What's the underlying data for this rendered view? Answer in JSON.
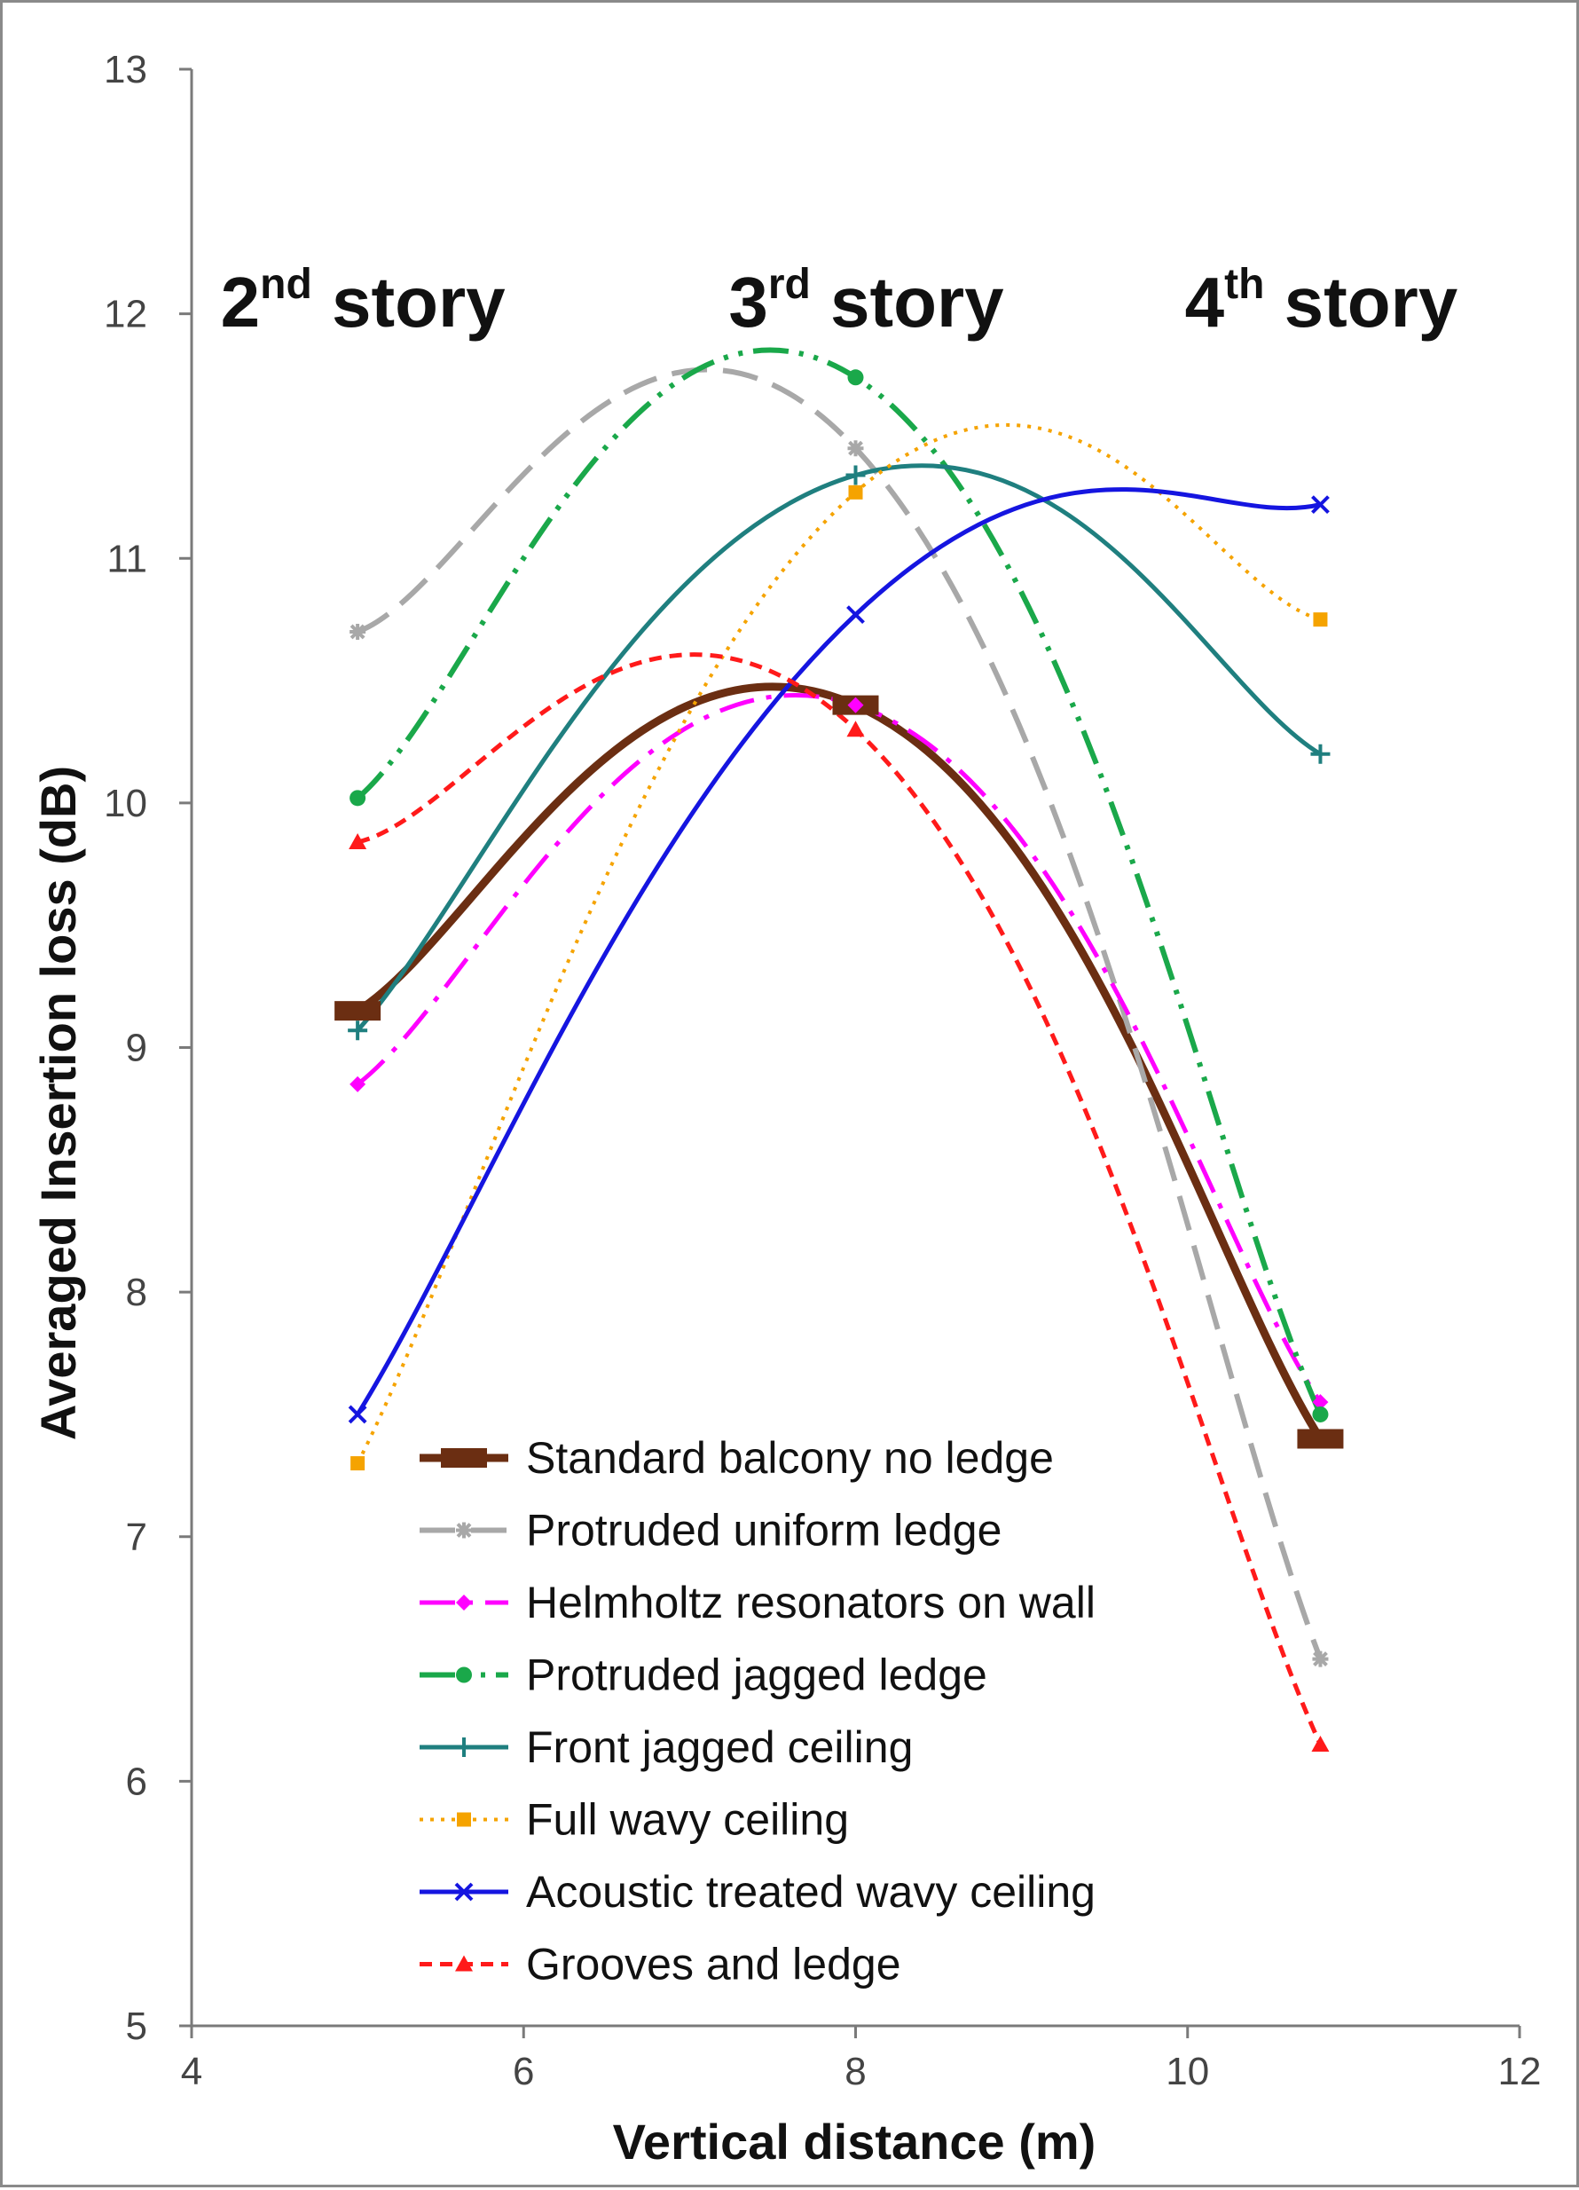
{
  "chart_data": {
    "type": "line",
    "title": "",
    "xlabel": "Vertical distance (m)",
    "ylabel": "Averaged Insertion loss (dB)",
    "xlim": [
      4,
      12
    ],
    "ylim": [
      5,
      13
    ],
    "xticks": [
      "4",
      "6",
      "8",
      "10",
      "12"
    ],
    "yticks": [
      "5",
      "6",
      "7",
      "8",
      "9",
      "10",
      "11",
      "12",
      "13"
    ],
    "x": [
      5,
      8,
      10.8
    ],
    "annotations": [
      {
        "base": "2",
        "sup": "nd",
        "text": " story"
      },
      {
        "base": "3",
        "sup": "rd",
        "text": " story"
      },
      {
        "base": "4",
        "sup": "th",
        "text": " story"
      }
    ],
    "series": [
      {
        "name": "Standard balcony no ledge",
        "values": [
          9.15,
          10.4,
          7.4
        ],
        "color": "#6b2e12",
        "dash": "",
        "width": 9,
        "marker": "bar"
      },
      {
        "name": "Protruded uniform ledge",
        "values": [
          10.7,
          11.45,
          6.5
        ],
        "color": "#a8a8a8",
        "dash": "40 18",
        "width": 6,
        "marker": "star"
      },
      {
        "name": "Helmholtz resonators on wall",
        "values": [
          8.85,
          10.4,
          7.55
        ],
        "color": "#ff00ff",
        "dash": "40 14 6 14",
        "width": 5,
        "marker": "diamond"
      },
      {
        "name": "Protruded jagged ledge",
        "values": [
          10.02,
          11.74,
          7.5
        ],
        "color": "#1aa84a",
        "dash": "40 12 5 12 5 12",
        "width": 6,
        "marker": "circle"
      },
      {
        "name": "Front jagged ceiling",
        "values": [
          9.07,
          11.34,
          10.2
        ],
        "color": "#1f7f7f",
        "dash": "",
        "width": 5,
        "marker": "plus"
      },
      {
        "name": "Full wavy ceiling",
        "values": [
          7.3,
          11.27,
          10.75
        ],
        "color": "#f5a300",
        "dash": "4 8",
        "width": 4,
        "marker": "square"
      },
      {
        "name": "Acoustic treated wavy ceiling",
        "values": [
          7.5,
          10.77,
          11.22
        ],
        "color": "#1515e0",
        "dash": "",
        "width": 5,
        "marker": "x"
      },
      {
        "name": "Grooves and ledge",
        "values": [
          9.84,
          10.3,
          6.15
        ],
        "color": "#ff1a1a",
        "dash": "14 9",
        "width": 5,
        "marker": "triangle"
      }
    ]
  }
}
